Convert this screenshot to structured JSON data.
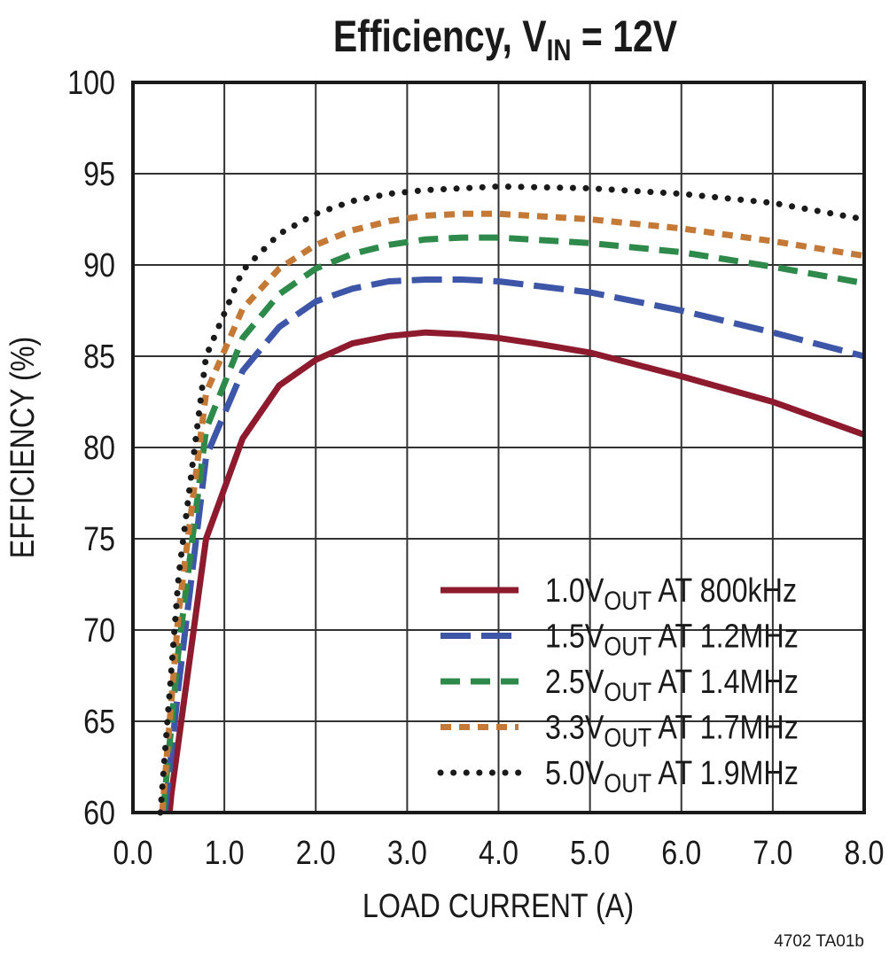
{
  "chart_data": {
    "type": "line",
    "title": {
      "main": "Efficiency, V",
      "sub": "IN",
      "rest": " = 12V"
    },
    "xlabel": "LOAD CURRENT (A)",
    "ylabel": "EFFICIENCY (%)",
    "xlim": [
      0,
      8
    ],
    "ylim": [
      60,
      100
    ],
    "xticks": [
      "0.0",
      "1.0",
      "2.0",
      "3.0",
      "4.0",
      "5.0",
      "6.0",
      "7.0",
      "8.0"
    ],
    "yticks": [
      "60",
      "65",
      "70",
      "75",
      "80",
      "85",
      "90",
      "95",
      "100"
    ],
    "grid": true,
    "legend_placement": "bottom-right",
    "footnote": "4702 TA01b",
    "series": [
      {
        "name": "1.0VOUT AT 800kHz",
        "label": {
          "a": "1.0V",
          "sub": "OUT",
          "b": " AT 800kHz"
        },
        "color": "#8e1a2e",
        "style": "solid",
        "x": [
          0.4,
          0.42,
          0.8,
          1.2,
          1.6,
          2.0,
          2.4,
          2.8,
          3.2,
          3.6,
          4.0,
          4.4,
          5.0,
          6.0,
          7.0,
          8.0
        ],
        "y": [
          60,
          61,
          75,
          80.5,
          83.4,
          84.8,
          85.7,
          86.1,
          86.3,
          86.2,
          86.0,
          85.7,
          85.2,
          83.9,
          82.5,
          80.7
        ]
      },
      {
        "name": "1.5VOUT AT 1.2MHz",
        "label": {
          "a": "1.5V",
          "sub": "OUT",
          "b": " AT 1.2MHz"
        },
        "color": "#3d56a8",
        "style": "longdash",
        "x": [
          0.35,
          0.5,
          0.8,
          1.2,
          1.6,
          2.0,
          2.4,
          2.8,
          3.2,
          3.6,
          4.0,
          5.0,
          6.0,
          7.0,
          8.0
        ],
        "y": [
          60,
          67,
          79.5,
          84.2,
          86.6,
          88.0,
          88.7,
          89.1,
          89.2,
          89.2,
          89.1,
          88.5,
          87.5,
          86.3,
          85.0
        ]
      },
      {
        "name": "2.5VOUT AT 1.4MHz",
        "label": {
          "a": "2.5V",
          "sub": "OUT",
          "b": " AT 1.4MHz"
        },
        "color": "#2e8a4a",
        "style": "dash",
        "x": [
          0.33,
          0.5,
          0.8,
          1.2,
          1.6,
          2.0,
          2.4,
          2.8,
          3.2,
          3.6,
          4.0,
          5.0,
          6.0,
          7.0,
          8.0
        ],
        "y": [
          60,
          69,
          81,
          86,
          88.4,
          89.8,
          90.6,
          91.1,
          91.4,
          91.5,
          91.5,
          91.2,
          90.7,
          89.9,
          89.0
        ]
      },
      {
        "name": "3.3VOUT AT 1.7MHz",
        "label": {
          "a": "3.3V",
          "sub": "OUT",
          "b": " AT 1.7MHz"
        },
        "color": "#c47a36",
        "style": "shortdash",
        "x": [
          0.32,
          0.5,
          0.8,
          1.2,
          1.6,
          2.0,
          2.4,
          2.8,
          3.2,
          3.6,
          4.0,
          5.0,
          6.0,
          7.0,
          8.0
        ],
        "y": [
          60,
          71,
          83,
          87.6,
          89.8,
          91.1,
          91.9,
          92.4,
          92.7,
          92.8,
          92.8,
          92.5,
          92.0,
          91.3,
          90.5
        ]
      },
      {
        "name": "5.0VOUT AT 1.9MHz",
        "label": {
          "a": "5.0V",
          "sub": "OUT",
          "b": " AT 1.9MHz"
        },
        "color": "#1a1a1a",
        "style": "dotted",
        "x": [
          0.3,
          0.5,
          0.8,
          1.2,
          1.6,
          2.0,
          2.4,
          2.8,
          3.2,
          3.6,
          4.0,
          5.0,
          6.0,
          7.0,
          8.0
        ],
        "y": [
          60,
          73,
          85,
          89.7,
          91.7,
          92.8,
          93.5,
          93.9,
          94.1,
          94.2,
          94.3,
          94.2,
          93.9,
          93.4,
          92.5
        ]
      }
    ]
  }
}
